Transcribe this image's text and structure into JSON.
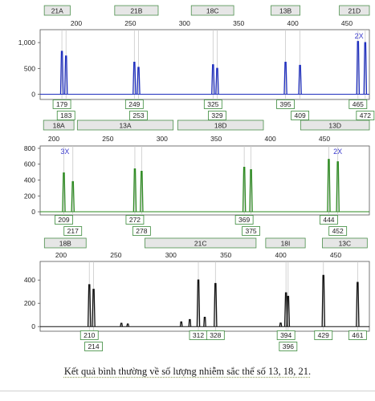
{
  "caption": "Kết quả bình thường về số lượng nhiễm sắc thể số 13, 18, 21.",
  "colors": {
    "panel1": "#1f2fbf",
    "panel2": "#2e8b22",
    "panel3": "#111111",
    "marker_fill": "#e6e6e6",
    "label_border": "#3a8a3a",
    "copy_label": "#3a3acc"
  },
  "chart_data": [
    {
      "type": "line",
      "x_ticks": [
        "200",
        "250",
        "300",
        "350",
        "400",
        "450"
      ],
      "y_ticks": [
        "0",
        "500",
        "1,000"
      ],
      "ylim": [
        -100,
        1250
      ],
      "xlim": [
        158,
        476
      ],
      "markers": [
        {
          "label": "21A",
          "from": 162,
          "to": 187
        },
        {
          "label": "21B",
          "from": 230,
          "to": 272
        },
        {
          "label": "18C",
          "from": 304,
          "to": 345
        },
        {
          "label": "13B",
          "from": 381,
          "to": 409
        },
        {
          "label": "21D",
          "from": 447,
          "to": 476
        }
      ],
      "peaks": [
        {
          "x": 179,
          "y": 830
        },
        {
          "x": 183,
          "y": 740
        },
        {
          "x": 249,
          "y": 620
        },
        {
          "x": 253,
          "y": 520
        },
        {
          "x": 325,
          "y": 570
        },
        {
          "x": 329,
          "y": 500
        },
        {
          "x": 395,
          "y": 620
        },
        {
          "x": 409,
          "y": 560
        },
        {
          "x": 465,
          "y": 1020
        },
        {
          "x": 472,
          "y": 1000
        }
      ],
      "size_labels_upper": [
        "179",
        "249",
        "325",
        "395",
        "465"
      ],
      "size_labels_lower": [
        "183",
        "253",
        "329",
        "409",
        "472"
      ],
      "annotations": [
        {
          "text": "2X",
          "x": 466,
          "y": 1080
        }
      ]
    },
    {
      "type": "line",
      "x_ticks": [
        "200",
        "250",
        "300",
        "350",
        "400",
        "450"
      ],
      "y_ticks": [
        "0",
        "200",
        "400",
        "600",
        "800"
      ],
      "ylim": [
        -40,
        830
      ],
      "xlim": [
        188,
        480
      ],
      "markers": [
        {
          "label": "18A",
          "from": 191,
          "to": 218
        },
        {
          "label": "13A",
          "from": 221,
          "to": 306
        },
        {
          "label": "18D",
          "from": 310,
          "to": 386
        },
        {
          "label": "13D",
          "from": 419,
          "to": 480
        }
      ],
      "peaks": [
        {
          "x": 209,
          "y": 490
        },
        {
          "x": 217,
          "y": 380
        },
        {
          "x": 272,
          "y": 540
        },
        {
          "x": 278,
          "y": 510
        },
        {
          "x": 369,
          "y": 560
        },
        {
          "x": 375,
          "y": 530
        },
        {
          "x": 444,
          "y": 660
        },
        {
          "x": 452,
          "y": 630
        }
      ],
      "size_labels_upper": [
        "209",
        "272",
        "369",
        "444"
      ],
      "size_labels_lower": [
        "217",
        "278",
        "375",
        "452"
      ],
      "annotations": [
        {
          "text": "3X",
          "x": 210,
          "y": 730
        },
        {
          "text": "2X",
          "x": 452,
          "y": 730
        }
      ]
    },
    {
      "type": "line",
      "x_ticks": [
        "200",
        "250",
        "300",
        "350",
        "400",
        "450"
      ],
      "y_ticks": [
        "0",
        "200",
        "400"
      ],
      "ylim": [
        -40,
        560
      ],
      "xlim": [
        164,
        472
      ],
      "markers": [
        {
          "label": "18B",
          "from": 168,
          "to": 207
        },
        {
          "label": "21C",
          "from": 262,
          "to": 366
        },
        {
          "label": "18I",
          "from": 375,
          "to": 412
        },
        {
          "label": "13C",
          "from": 428,
          "to": 470
        }
      ],
      "peaks": [
        {
          "x": 210,
          "y": 360
        },
        {
          "x": 214,
          "y": 320
        },
        {
          "x": 312,
          "y": 400
        },
        {
          "x": 328,
          "y": 370
        },
        {
          "x": 394,
          "y": 290
        },
        {
          "x": 396,
          "y": 260
        },
        {
          "x": 429,
          "y": 440
        },
        {
          "x": 461,
          "y": 380
        }
      ],
      "small_peaks": [
        {
          "x": 240,
          "y": 28
        },
        {
          "x": 246,
          "y": 22
        },
        {
          "x": 296,
          "y": 40
        },
        {
          "x": 304,
          "y": 60
        },
        {
          "x": 318,
          "y": 80
        },
        {
          "x": 389,
          "y": 30
        }
      ],
      "size_labels_upper": [
        "210",
        "312",
        "328",
        "394",
        "429",
        "461"
      ],
      "size_labels_lower": [
        "214",
        "396"
      ],
      "annotations": []
    }
  ]
}
